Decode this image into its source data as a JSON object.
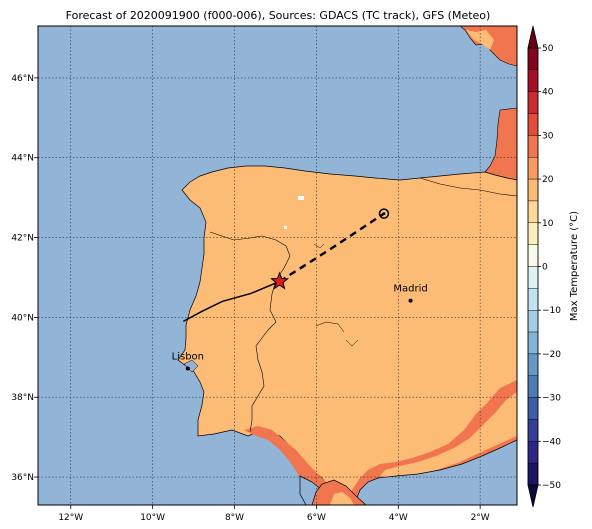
{
  "title": "Forecast of 2020091900 (f000-006), Sources: GDACS (TC track), GFS (Meteo)",
  "map": {
    "lon_range": [
      -12.8,
      -1.1
    ],
    "lat_range": [
      35.3,
      47.3
    ],
    "lon_ticks": [
      -12,
      -10,
      -8,
      -6,
      -4,
      -2
    ],
    "lat_ticks": [
      36,
      38,
      40,
      42,
      44,
      46
    ],
    "lon_tick_labels": [
      "12°W",
      "10°W",
      "8°W",
      "6°W",
      "4°W",
      "2°W"
    ],
    "lat_tick_labels": [
      "36°N",
      "38°N",
      "40°N",
      "42°N",
      "44°N",
      "46°N"
    ],
    "gridlines": true,
    "colors": {
      "sea": "#91b4d7",
      "land_warm": "#fdbc76",
      "land_hot": "#f17650",
      "coast": "#000000",
      "track": "#000000",
      "star": "#e41a1c"
    }
  },
  "cities": [
    {
      "name": "Lisbon",
      "lon": -9.14,
      "lat": 38.72
    },
    {
      "name": "Madrid",
      "lon": -3.7,
      "lat": 40.42
    }
  ],
  "track": {
    "past": [
      [
        -9.25,
        39.9
      ],
      [
        -8.8,
        40.15
      ],
      [
        -8.3,
        40.4
      ],
      [
        -7.6,
        40.6
      ],
      [
        -6.9,
        40.9
      ]
    ],
    "forecast": [
      [
        -6.9,
        40.9
      ],
      [
        -5.6,
        41.75
      ],
      [
        -4.35,
        42.6
      ]
    ],
    "current_position": [
      -6.9,
      40.9
    ],
    "forecast_end": [
      -4.35,
      42.6
    ]
  },
  "colorbar": {
    "label": "Max Temperature (°C)",
    "ticks": [
      50,
      40,
      30,
      20,
      10,
      0,
      -10,
      -20,
      -30,
      -40,
      -50
    ],
    "tick_labels": [
      "50",
      "40",
      "30",
      "20",
      "10",
      "0",
      "−10",
      "−20",
      "−30",
      "−40",
      "−50"
    ],
    "bands": [
      {
        "from": 45,
        "to": 50,
        "color": "#80061e"
      },
      {
        "from": 40,
        "to": 45,
        "color": "#a70e27"
      },
      {
        "from": 35,
        "to": 40,
        "color": "#cb2a30"
      },
      {
        "from": 30,
        "to": 35,
        "color": "#e34d3a"
      },
      {
        "from": 25,
        "to": 30,
        "color": "#f17650"
      },
      {
        "from": 20,
        "to": 25,
        "color": "#f99a5e"
      },
      {
        "from": 15,
        "to": 20,
        "color": "#fdbc76"
      },
      {
        "from": 10,
        "to": 15,
        "color": "#fdd896"
      },
      {
        "from": 5,
        "to": 10,
        "color": "#fdeec0"
      },
      {
        "from": 0,
        "to": 5,
        "color": "#f7fbe8"
      },
      {
        "from": -5,
        "to": 0,
        "color": "#e1f2f5"
      },
      {
        "from": -10,
        "to": -5,
        "color": "#c2e3ef"
      },
      {
        "from": -15,
        "to": -10,
        "color": "#a3cde4"
      },
      {
        "from": -20,
        "to": -15,
        "color": "#83b4d6"
      },
      {
        "from": -25,
        "to": -20,
        "color": "#6598c6"
      },
      {
        "from": -30,
        "to": -25,
        "color": "#4d7bb6"
      },
      {
        "from": -35,
        "to": -30,
        "color": "#3d5ea6"
      },
      {
        "from": -40,
        "to": -35,
        "color": "#353f95"
      },
      {
        "from": -45,
        "to": -40,
        "color": "#2c2684"
      },
      {
        "from": -50,
        "to": -45,
        "color": "#1d1463"
      }
    ],
    "extend_max_color": "#670016",
    "extend_min_color": "#0b0a3a"
  }
}
